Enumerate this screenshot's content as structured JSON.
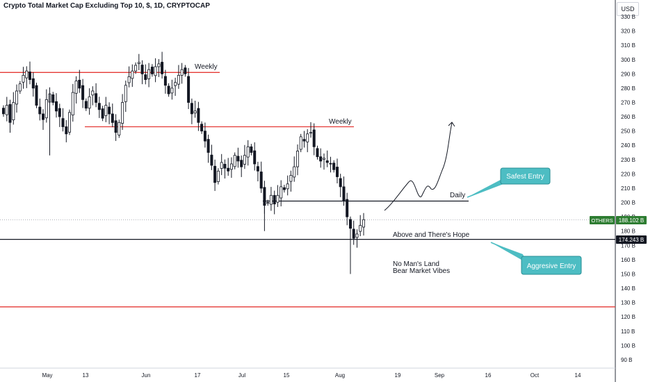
{
  "header": {
    "title": "Crypto Total Market Cap Excluding Top 10, $, 1D, CRYPTOCAP",
    "currency": "USD"
  },
  "colors": {
    "level_red": "#e53935",
    "level_black": "#131722",
    "candle": "#131722",
    "callout": "#4dbdc3",
    "price_tag_green": "#2e7d32",
    "price_tag_black": "#131722"
  },
  "annotations": {
    "weekly_top": "Weekly",
    "weekly_mid": "Weekly",
    "daily": "Daily",
    "above_hope": "Above and There's Hope",
    "no_mans_land": "No Man's Land",
    "bear_vibes": "Bear Market Vibes",
    "safest_entry": "Safest Entry",
    "aggressive_entry": "Aggresive Entry"
  },
  "price_tags": {
    "symbol": "OTHERS",
    "last": "188.102 B",
    "level": "174.243 B"
  },
  "chart_data": {
    "type": "candlestick",
    "title": "Crypto Total Market Cap Excluding Top 10, $, 1D, CRYPTOCAP",
    "unit": "USD",
    "y_range": [
      84,
      336
    ],
    "y_ticks": [
      "330 B",
      "320 B",
      "310 B",
      "300 B",
      "290 B",
      "280 B",
      "270 B",
      "260 B",
      "250 B",
      "240 B",
      "230 B",
      "220 B",
      "210 B",
      "200 B",
      "190 B",
      "180 B",
      "170 B",
      "160 B",
      "150 B",
      "140 B",
      "130 B",
      "120 B",
      "110 B",
      "100 B",
      "90 B"
    ],
    "x_ticks": [
      "May",
      "13",
      "Jun",
      "17",
      "Jul",
      "15",
      "Aug",
      "19",
      "Sep",
      "16",
      "Oct",
      "14"
    ],
    "levels": [
      {
        "label": "Weekly",
        "value": 291,
        "color": "red"
      },
      {
        "label": "Weekly",
        "value": 253,
        "color": "red"
      },
      {
        "label": "Daily",
        "value": 201,
        "color": "black"
      },
      {
        "label": "Above and There's Hope",
        "value": 174.243,
        "color": "black"
      },
      {
        "label": "",
        "value": 127,
        "color": "red"
      }
    ],
    "closes": [
      262,
      268,
      256,
      270,
      278,
      283,
      289,
      292,
      286,
      280,
      268,
      262,
      258,
      272,
      276,
      270,
      264,
      260,
      253,
      248,
      263,
      277,
      285,
      280,
      272,
      266,
      274,
      278,
      270,
      265,
      259,
      268,
      262,
      256,
      249,
      256,
      270,
      282,
      288,
      292,
      296,
      298,
      290,
      286,
      293,
      290,
      295,
      297,
      290,
      282,
      276,
      280,
      284,
      289,
      293,
      290,
      270,
      262,
      264,
      256,
      250,
      243,
      235,
      226,
      214,
      222,
      228,
      224,
      222,
      227,
      233,
      229,
      225,
      233,
      239,
      235,
      227,
      222,
      210,
      198,
      200,
      205,
      199,
      205,
      211,
      209,
      213,
      219,
      225,
      236,
      246,
      243,
      248,
      249,
      239,
      232,
      229,
      231,
      228,
      227,
      223,
      218,
      211,
      201,
      190,
      182,
      175,
      178,
      184,
      188
    ],
    "last_value": 188.102
  }
}
